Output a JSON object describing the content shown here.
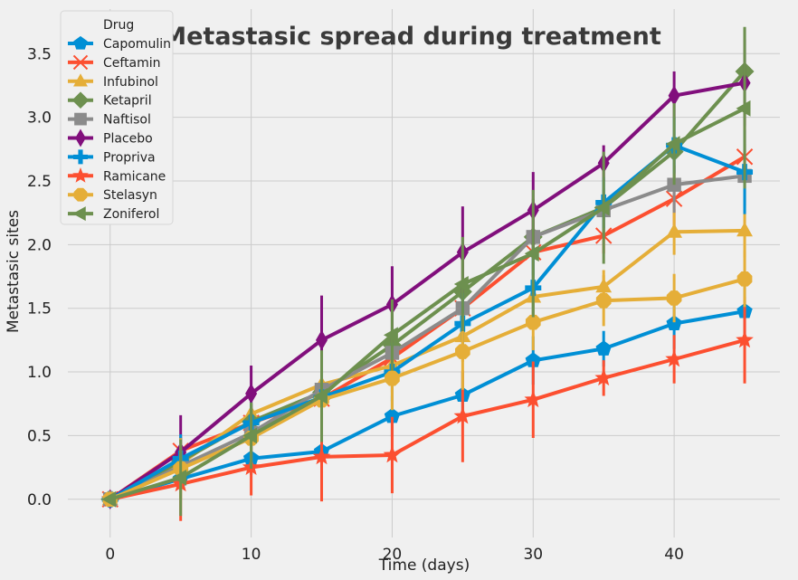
{
  "chart_data": {
    "type": "line",
    "title": "Metastasic spread during treatment",
    "xlabel": "Time (days)",
    "ylabel": "Metastasic sites",
    "xlim": [
      -3,
      47.5
    ],
    "ylim": [
      -0.3,
      3.85
    ],
    "xticks": [
      0,
      10,
      20,
      30,
      40
    ],
    "yticks": [
      0.0,
      0.5,
      1.0,
      1.5,
      2.0,
      2.5,
      3.0,
      3.5
    ],
    "grid": true,
    "legend": {
      "title": "Drug",
      "placement": "top-left"
    },
    "x": [
      0,
      5,
      10,
      15,
      20,
      25,
      30,
      35,
      40,
      45
    ],
    "series": [
      {
        "name": "Capomulin",
        "color": "#008fd5",
        "marker": "pentagon",
        "values": [
          0.0,
          0.16,
          0.32,
          0.375,
          0.652,
          0.818,
          1.09,
          1.182,
          1.38,
          1.476
        ],
        "errors": [
          0,
          0.07,
          0.13,
          0.13,
          0.16,
          0.18,
          0.19,
          0.14,
          0.2,
          0.21
        ]
      },
      {
        "name": "Ceftamin",
        "color": "#fc4f30",
        "marker": "x",
        "values": [
          0.0,
          0.38,
          0.6,
          0.79,
          1.11,
          1.5,
          1.94,
          2.07,
          2.36,
          2.69
        ],
        "errors": [
          0,
          0.11,
          0.15,
          0.2,
          0.19,
          0.22,
          0.28,
          0.14,
          0.26,
          0.38
        ]
      },
      {
        "name": "Infubinol",
        "color": "#e5ae38",
        "marker": "triangle",
        "values": [
          0.0,
          0.28,
          0.67,
          0.9,
          1.05,
          1.28,
          1.59,
          1.67,
          2.1,
          2.11
        ],
        "errors": [
          0,
          0.1,
          0.13,
          0.2,
          0.21,
          0.2,
          0.25,
          0.13,
          0.18,
          0.21
        ]
      },
      {
        "name": "Ketapril",
        "color": "#6d904f",
        "marker": "diamond",
        "values": [
          0.0,
          0.3,
          0.61,
          0.84,
          1.21,
          1.63,
          2.06,
          2.29,
          2.73,
          3.36
        ],
        "errors": [
          0,
          0.1,
          0.14,
          0.19,
          0.26,
          0.38,
          0.3,
          0.22,
          0.25,
          0.35
        ]
      },
      {
        "name": "Naftisol",
        "color": "#8b8b8b",
        "marker": "square",
        "values": [
          0.0,
          0.26,
          0.52,
          0.86,
          1.15,
          1.5,
          2.06,
          2.27,
          2.47,
          2.54
        ],
        "errors": [
          0,
          0.1,
          0.14,
          0.15,
          0.2,
          0.22,
          0.25,
          0.17,
          0.22,
          0.25
        ]
      },
      {
        "name": "Placebo",
        "color": "#810f7c",
        "marker": "thin-diamond",
        "values": [
          0.0,
          0.37,
          0.83,
          1.25,
          1.53,
          1.94,
          2.27,
          2.64,
          3.17,
          3.27
        ],
        "errors": [
          0,
          0.29,
          0.22,
          0.35,
          0.3,
          0.36,
          0.3,
          0.14,
          0.19,
          0.34
        ]
      },
      {
        "name": "Propriva",
        "color": "#008fd5",
        "marker": "plus",
        "values": [
          0.0,
          0.32,
          0.6,
          0.8,
          1.0,
          1.38,
          1.66,
          2.33,
          2.78,
          2.57
        ],
        "errors": [
          0,
          0.19,
          0.16,
          0.13,
          0.23,
          0.24,
          0.32,
          0.2,
          0.22,
          0.33
        ]
      },
      {
        "name": "Ramicane",
        "color": "#fc4f30",
        "marker": "star",
        "values": [
          0.0,
          0.12,
          0.25,
          0.333,
          0.347,
          0.652,
          0.782,
          0.952,
          1.1,
          1.25
        ],
        "errors": [
          0,
          0.29,
          0.22,
          0.35,
          0.3,
          0.36,
          0.3,
          0.14,
          0.19,
          0.34
        ]
      },
      {
        "name": "Stelasyn",
        "color": "#e5ae38",
        "marker": "octagon",
        "values": [
          0.0,
          0.24,
          0.48,
          0.78,
          0.95,
          1.16,
          1.39,
          1.56,
          1.58,
          1.73
        ],
        "errors": [
          0,
          0.24,
          0.22,
          0.2,
          0.25,
          0.3,
          0.22,
          0.2,
          0.19,
          0.22
        ]
      },
      {
        "name": "Zoniferol",
        "color": "#6d904f",
        "marker": "triangle-left",
        "values": [
          0.0,
          0.17,
          0.5,
          0.81,
          1.29,
          1.69,
          1.93,
          2.29,
          2.79,
          3.07
        ],
        "errors": [
          0,
          0.3,
          0.26,
          0.36,
          0.28,
          0.37,
          0.5,
          0.44,
          0.32,
          0.63
        ]
      }
    ]
  }
}
